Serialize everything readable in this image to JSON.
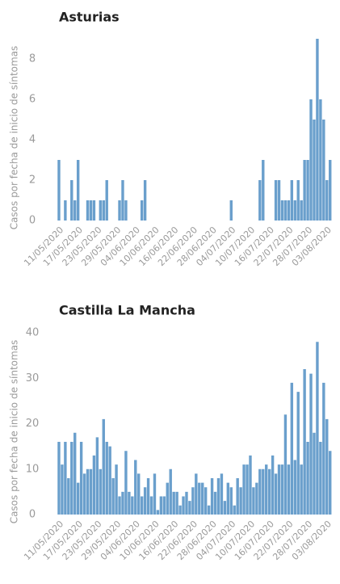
{
  "chart_data": [
    {
      "type": "bar",
      "title": "Asturias",
      "y_label": "Casos por fecha de inicio de síntomas",
      "color": "#6a9fcc",
      "categories": [
        "11/05/2020",
        null,
        null,
        null,
        null,
        null,
        "17/05/2020",
        null,
        null,
        null,
        null,
        null,
        "23/05/2020",
        null,
        null,
        null,
        null,
        null,
        "29/05/2020",
        null,
        null,
        null,
        null,
        null,
        "04/06/2020",
        null,
        null,
        null,
        null,
        null,
        "10/06/2020",
        null,
        null,
        null,
        null,
        null,
        "16/06/2020",
        null,
        null,
        null,
        null,
        null,
        "22/06/2020",
        null,
        null,
        null,
        null,
        null,
        "28/06/2020",
        null,
        null,
        null,
        null,
        null,
        "04/07/2020",
        null,
        null,
        null,
        null,
        null,
        "10/07/2020",
        null,
        null,
        null,
        null,
        null,
        "16/07/2020",
        null,
        null,
        null,
        null,
        null,
        "22/07/2020",
        null,
        null,
        null,
        null,
        null,
        "28/07/2020",
        null,
        null,
        null,
        null,
        null,
        "03/08/2020",
        null
      ],
      "values": [
        3,
        0,
        1,
        0,
        2,
        1,
        3,
        0,
        0,
        1,
        1,
        1,
        0,
        1,
        1,
        2,
        0,
        0,
        0,
        1,
        2,
        1,
        0,
        0,
        0,
        0,
        1,
        2,
        0,
        0,
        0,
        0,
        0,
        0,
        0,
        0,
        0,
        0,
        0,
        0,
        0,
        0,
        0,
        0,
        0,
        0,
        0,
        0,
        0,
        0,
        0,
        0,
        0,
        0,
        1,
        0,
        0,
        0,
        0,
        0,
        0,
        0,
        0,
        2,
        3,
        0,
        0,
        0,
        2,
        2,
        1,
        1,
        1,
        2,
        1,
        2,
        1,
        3,
        3,
        6,
        5,
        9,
        6,
        5,
        2,
        3
      ],
      "ylim": [
        0,
        9
      ],
      "yticks": [
        0,
        2,
        4,
        6,
        8
      ]
    },
    {
      "type": "bar",
      "title": "Castilla La Mancha",
      "y_label": "Casos por fecha de inicio de síntomas",
      "color": "#6a9fcc",
      "categories": [
        "11/05/2020",
        null,
        null,
        null,
        null,
        null,
        "17/05/2020",
        null,
        null,
        null,
        null,
        null,
        "23/05/2020",
        null,
        null,
        null,
        null,
        null,
        "29/05/2020",
        null,
        null,
        null,
        null,
        null,
        "04/06/2020",
        null,
        null,
        null,
        null,
        null,
        "10/06/2020",
        null,
        null,
        null,
        null,
        null,
        "16/06/2020",
        null,
        null,
        null,
        null,
        null,
        "22/06/2020",
        null,
        null,
        null,
        null,
        null,
        "28/06/2020",
        null,
        null,
        null,
        null,
        null,
        "04/07/2020",
        null,
        null,
        null,
        null,
        null,
        "10/07/2020",
        null,
        null,
        null,
        null,
        null,
        "16/07/2020",
        null,
        null,
        null,
        null,
        null,
        "22/07/2020",
        null,
        null,
        null,
        null,
        null,
        "28/07/2020",
        null,
        null,
        null,
        null,
        null,
        "03/08/2020",
        null
      ],
      "values": [
        16,
        11,
        16,
        8,
        16,
        18,
        7,
        16,
        9,
        10,
        10,
        13,
        17,
        10,
        21,
        16,
        15,
        8,
        11,
        4,
        5,
        14,
        5,
        4,
        12,
        9,
        4,
        6,
        8,
        4,
        9,
        1,
        4,
        4,
        7,
        10,
        5,
        5,
        2,
        4,
        5,
        3,
        6,
        9,
        7,
        7,
        6,
        2,
        8,
        5,
        8,
        9,
        3,
        7,
        6,
        2,
        8,
        6,
        11,
        11,
        13,
        6,
        7,
        10,
        10,
        11,
        10,
        13,
        9,
        11,
        11,
        22,
        11,
        29,
        12,
        27,
        11,
        32,
        16,
        31,
        18,
        38,
        16,
        29,
        21,
        14
      ],
      "ylim": [
        0,
        40
      ],
      "yticks": [
        0,
        10,
        20,
        30,
        40
      ]
    }
  ]
}
